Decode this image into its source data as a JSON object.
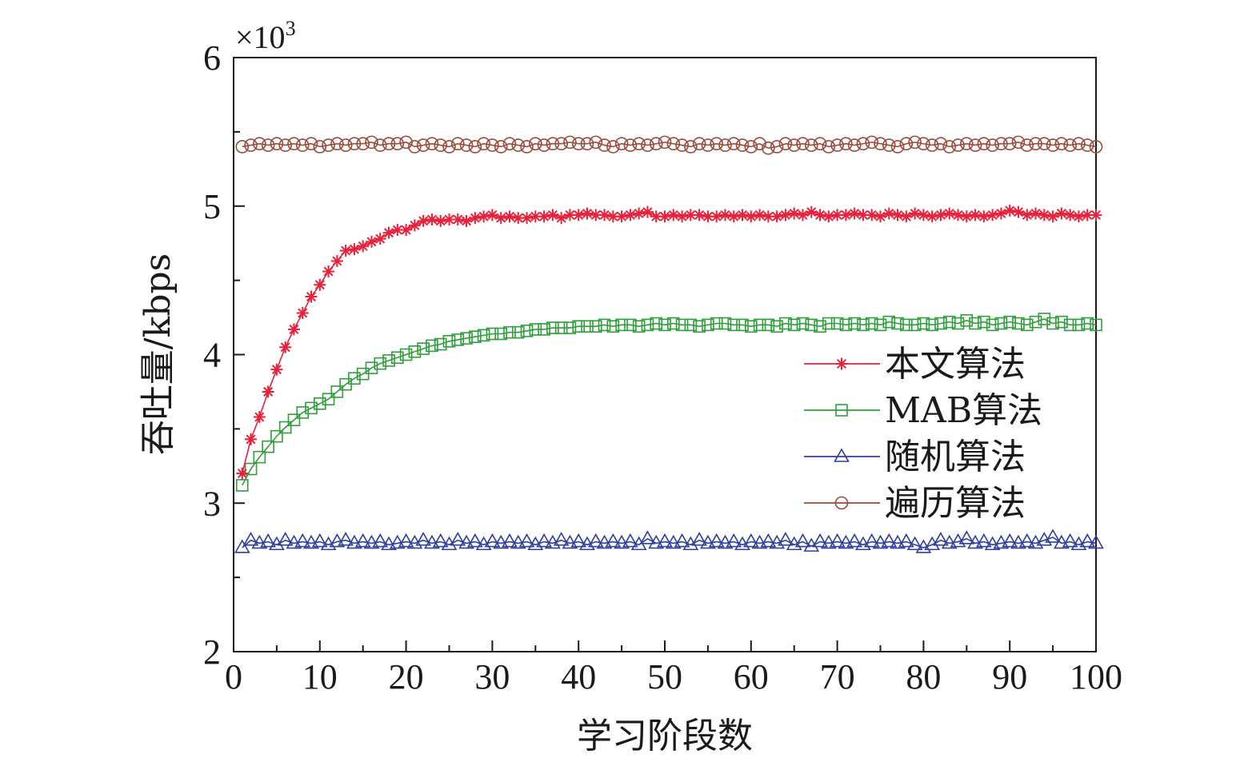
{
  "chart_data": {
    "type": "line",
    "xlabel": "学习阶段数",
    "ylabel": "吞吐量/kbps",
    "y_scale_note": "×10",
    "y_scale_exp": "3",
    "xlim": [
      0,
      100
    ],
    "ylim": [
      2,
      6
    ],
    "x_ticks": [
      "0",
      "10",
      "20",
      "30",
      "40",
      "50",
      "60",
      "70",
      "80",
      "90",
      "100"
    ],
    "y_ticks": [
      "2",
      "3",
      "4",
      "5",
      "6"
    ],
    "grid": false,
    "legend_position": "right-center",
    "x": [
      1,
      2,
      3,
      4,
      5,
      6,
      7,
      8,
      9,
      10,
      11,
      12,
      13,
      14,
      15,
      16,
      17,
      18,
      19,
      20,
      21,
      22,
      23,
      24,
      25,
      26,
      27,
      28,
      29,
      30,
      31,
      32,
      33,
      34,
      35,
      36,
      37,
      38,
      39,
      40,
      41,
      42,
      43,
      44,
      45,
      46,
      47,
      48,
      49,
      50,
      51,
      52,
      53,
      54,
      55,
      56,
      57,
      58,
      59,
      60,
      61,
      62,
      63,
      64,
      65,
      66,
      67,
      68,
      69,
      70,
      71,
      72,
      73,
      74,
      75,
      76,
      77,
      78,
      79,
      80,
      81,
      82,
      83,
      84,
      85,
      86,
      87,
      88,
      89,
      90,
      91,
      92,
      93,
      94,
      95,
      96,
      97,
      98,
      99,
      100
    ],
    "series": [
      {
        "name": "本文算法",
        "color": "#e8203a",
        "marker": "asterisk",
        "values": [
          3.2,
          3.43,
          3.58,
          3.75,
          3.9,
          4.05,
          4.17,
          4.28,
          4.39,
          4.47,
          4.56,
          4.63,
          4.7,
          4.71,
          4.73,
          4.76,
          4.78,
          4.82,
          4.84,
          4.84,
          4.87,
          4.9,
          4.91,
          4.9,
          4.91,
          4.91,
          4.9,
          4.92,
          4.93,
          4.94,
          4.92,
          4.93,
          4.92,
          4.92,
          4.93,
          4.93,
          4.94,
          4.92,
          4.94,
          4.94,
          4.95,
          4.94,
          4.94,
          4.93,
          4.93,
          4.94,
          4.95,
          4.96,
          4.93,
          4.93,
          4.94,
          4.93,
          4.94,
          4.94,
          4.93,
          4.93,
          4.94,
          4.93,
          4.94,
          4.93,
          4.94,
          4.93,
          4.93,
          4.94,
          4.95,
          4.94,
          4.96,
          4.94,
          4.93,
          4.94,
          4.94,
          4.95,
          4.94,
          4.94,
          4.93,
          4.95,
          4.94,
          4.93,
          4.95,
          4.94,
          4.93,
          4.94,
          4.95,
          4.94,
          4.93,
          4.94,
          4.93,
          4.94,
          4.95,
          4.97,
          4.96,
          4.94,
          4.95,
          4.94,
          4.93,
          4.95,
          4.94,
          4.93,
          4.94,
          4.94
        ]
      },
      {
        "name": "MAB算法",
        "color": "#2e9e3a",
        "marker": "square",
        "values": [
          3.12,
          3.23,
          3.31,
          3.38,
          3.45,
          3.51,
          3.56,
          3.61,
          3.64,
          3.67,
          3.7,
          3.75,
          3.8,
          3.84,
          3.87,
          3.91,
          3.94,
          3.96,
          3.98,
          4.0,
          4.02,
          4.04,
          4.06,
          4.07,
          4.09,
          4.1,
          4.11,
          4.12,
          4.13,
          4.14,
          4.14,
          4.15,
          4.15,
          4.16,
          4.17,
          4.17,
          4.18,
          4.18,
          4.18,
          4.19,
          4.19,
          4.19,
          4.2,
          4.19,
          4.2,
          4.2,
          4.19,
          4.2,
          4.21,
          4.2,
          4.21,
          4.2,
          4.2,
          4.19,
          4.2,
          4.21,
          4.21,
          4.2,
          4.2,
          4.19,
          4.2,
          4.2,
          4.19,
          4.21,
          4.2,
          4.21,
          4.2,
          4.19,
          4.21,
          4.21,
          4.2,
          4.21,
          4.2,
          4.21,
          4.2,
          4.22,
          4.21,
          4.2,
          4.2,
          4.21,
          4.2,
          4.21,
          4.22,
          4.21,
          4.23,
          4.21,
          4.22,
          4.2,
          4.21,
          4.22,
          4.21,
          4.2,
          4.22,
          4.24,
          4.21,
          4.22,
          4.2,
          4.2,
          4.21,
          4.2
        ]
      },
      {
        "name": "随机算法",
        "color": "#2e3f9c",
        "marker": "triangle",
        "values": [
          2.7,
          2.75,
          2.73,
          2.74,
          2.72,
          2.75,
          2.73,
          2.74,
          2.73,
          2.74,
          2.72,
          2.74,
          2.75,
          2.73,
          2.74,
          2.73,
          2.74,
          2.72,
          2.73,
          2.74,
          2.73,
          2.75,
          2.73,
          2.74,
          2.72,
          2.75,
          2.73,
          2.74,
          2.72,
          2.74,
          2.73,
          2.74,
          2.73,
          2.74,
          2.72,
          2.74,
          2.73,
          2.75,
          2.73,
          2.74,
          2.72,
          2.74,
          2.73,
          2.74,
          2.73,
          2.74,
          2.72,
          2.76,
          2.73,
          2.74,
          2.73,
          2.74,
          2.72,
          2.75,
          2.73,
          2.74,
          2.73,
          2.74,
          2.72,
          2.74,
          2.73,
          2.74,
          2.73,
          2.75,
          2.72,
          2.74,
          2.71,
          2.74,
          2.73,
          2.74,
          2.73,
          2.74,
          2.72,
          2.74,
          2.73,
          2.74,
          2.73,
          2.74,
          2.72,
          2.7,
          2.72,
          2.75,
          2.73,
          2.74,
          2.76,
          2.73,
          2.74,
          2.72,
          2.73,
          2.74,
          2.73,
          2.74,
          2.73,
          2.75,
          2.77,
          2.73,
          2.74,
          2.72,
          2.74,
          2.73
        ]
      },
      {
        "name": "遍历算法",
        "color": "#9a4a3a",
        "marker": "circle",
        "values": [
          5.4,
          5.41,
          5.42,
          5.41,
          5.42,
          5.41,
          5.42,
          5.41,
          5.42,
          5.4,
          5.41,
          5.42,
          5.41,
          5.42,
          5.42,
          5.43,
          5.41,
          5.42,
          5.42,
          5.43,
          5.4,
          5.41,
          5.42,
          5.41,
          5.4,
          5.42,
          5.41,
          5.4,
          5.42,
          5.41,
          5.4,
          5.42,
          5.41,
          5.4,
          5.42,
          5.41,
          5.42,
          5.42,
          5.43,
          5.42,
          5.42,
          5.43,
          5.41,
          5.4,
          5.42,
          5.41,
          5.42,
          5.41,
          5.42,
          5.43,
          5.42,
          5.41,
          5.4,
          5.42,
          5.41,
          5.42,
          5.41,
          5.42,
          5.41,
          5.4,
          5.42,
          5.39,
          5.4,
          5.42,
          5.41,
          5.42,
          5.41,
          5.42,
          5.4,
          5.41,
          5.42,
          5.41,
          5.42,
          5.43,
          5.42,
          5.41,
          5.4,
          5.42,
          5.43,
          5.42,
          5.41,
          5.42,
          5.4,
          5.41,
          5.42,
          5.41,
          5.42,
          5.41,
          5.42,
          5.42,
          5.43,
          5.41,
          5.42,
          5.42,
          5.41,
          5.42,
          5.41,
          5.42,
          5.41,
          5.4
        ]
      }
    ]
  }
}
